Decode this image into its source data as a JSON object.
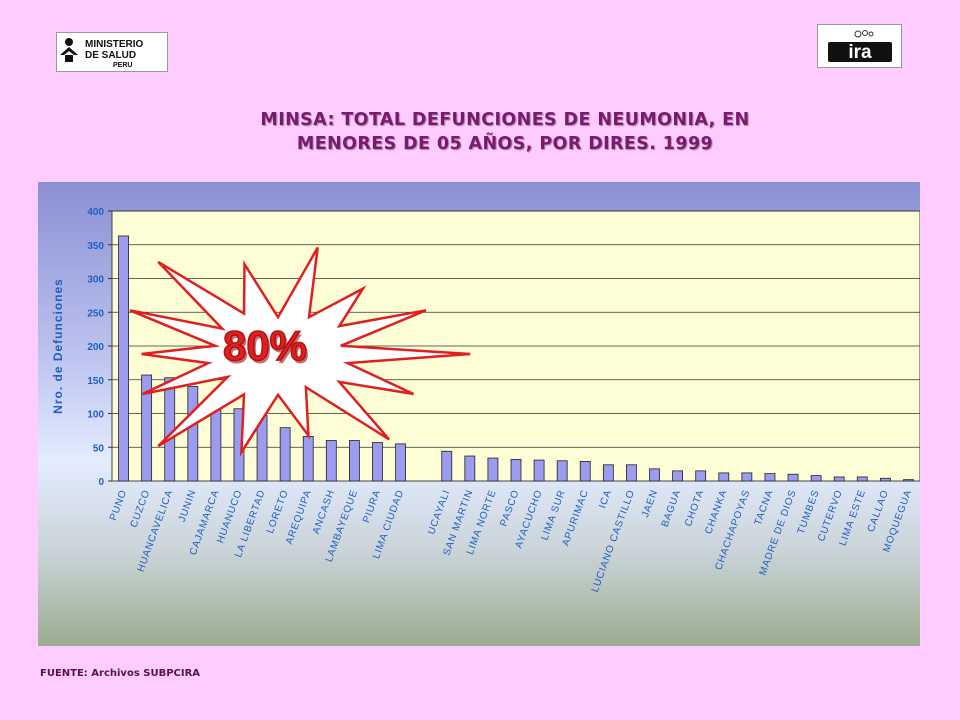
{
  "logos": {
    "minsa": {
      "line1": "MINISTERIO",
      "line2": "DE SALUD",
      "line3": "PERU"
    },
    "ira": {
      "text": "ira"
    }
  },
  "header": {
    "title_line1": "MINSA: TOTAL DEFUNCIONES DE NEUMONIA, EN",
    "title_line2": "MENORES DE 05 AÑOS, POR DIRES. 1999"
  },
  "annotation": {
    "text": "80%",
    "fill": "#ffffff",
    "stroke": "#e02020"
  },
  "footer": {
    "source": "FUENTE: Archivos SUBPCIRA"
  },
  "colors": {
    "bar": "#9b9bf0",
    "plot_bg": "#fdfdd6",
    "axis_text": "#1f5fbf"
  },
  "chart_data": {
    "type": "bar",
    "title": "MINSA: TOTAL DEFUNCIONES DE NEUMONIA, EN MENORES DE 05 AÑOS, POR DIRES. 1999",
    "xlabel": "",
    "ylabel": "Nro. de Defunciones",
    "ylim": [
      0,
      400
    ],
    "yticks": [
      0,
      50,
      100,
      150,
      200,
      250,
      300,
      350,
      400
    ],
    "grid": true,
    "legend": "none",
    "categories": [
      "PUNO",
      "CUZCO",
      "HUANCAVELICA",
      "JUNIN",
      "CAJAMARCA",
      "HUANUCO",
      "LA LIBERTAD",
      "LORETO",
      "AREQUIPA",
      "ANCASH",
      "LAMBAYEQUE",
      "PIURA",
      "LIMA CIUDAD",
      "",
      "UCAYALI",
      "SAN MARTIN",
      "LIMA NORTE",
      "PASCO",
      "AYACUCHO",
      "LIMA SUR",
      "APURIMAC",
      "ICA",
      "LUCIANO CASTILLO",
      "JAEN",
      "BAGUA",
      "CHOTA",
      "CHANKA",
      "CHACHAPOYAS",
      "TACNA",
      "MADRE DE DIOS",
      "TUMBES",
      "CUTERVO",
      "LIMA ESTE",
      "CALLAO",
      "MOQUEGUA"
    ],
    "values": [
      363,
      157,
      153,
      140,
      125,
      107,
      97,
      79,
      66,
      60,
      60,
      57,
      55,
      null,
      44,
      37,
      34,
      32,
      31,
      30,
      29,
      24,
      24,
      18,
      15,
      15,
      12,
      12,
      11,
      10,
      8,
      6,
      6,
      4,
      2
    ]
  }
}
